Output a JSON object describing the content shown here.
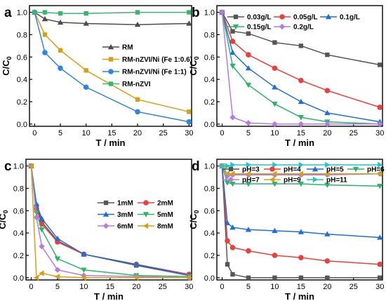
{
  "chart_data": [
    {
      "panel": "a",
      "type": "line",
      "xlabel": "T / min",
      "ylabel": "C/C",
      "ylabel_sub": "0",
      "xlim": [
        -1,
        30.5
      ],
      "ylim": [
        -0.02,
        1.06
      ],
      "xticks": [
        0,
        5,
        10,
        15,
        20,
        25,
        30
      ],
      "yticks": [
        0.0,
        0.2,
        0.4,
        0.6,
        0.8,
        1.0
      ],
      "legend_position": "right",
      "series": [
        {
          "name": "RM",
          "color": "#4d4d4d",
          "marker": "triangle-up",
          "x": [
            0,
            2,
            5,
            10,
            20,
            30
          ],
          "y": [
            1.0,
            0.94,
            0.91,
            0.9,
            0.89,
            0.9
          ]
        },
        {
          "name": "RM-nZVI/Ni (Fe 1:0.6)",
          "color": "#d4a017",
          "marker": "square",
          "x": [
            0,
            2,
            5,
            10,
            20,
            30
          ],
          "y": [
            1.0,
            0.8,
            0.66,
            0.48,
            0.22,
            0.11
          ]
        },
        {
          "name": "RM-nZVI/Ni (Fe 1:1)",
          "color": "#2e86de",
          "marker": "circle",
          "x": [
            0,
            2,
            5,
            10,
            20,
            30
          ],
          "y": [
            1.0,
            0.64,
            0.5,
            0.33,
            0.11,
            0.02
          ]
        },
        {
          "name": "RM-nZVI",
          "color": "#3cb371",
          "marker": "square",
          "x": [
            0,
            2,
            5,
            10,
            20,
            30
          ],
          "y": [
            1.0,
            1.0,
            0.99,
            0.99,
            1.0,
            1.0
          ]
        }
      ]
    },
    {
      "panel": "b",
      "type": "line",
      "xlabel": "T / min",
      "ylabel": "C/C",
      "ylabel_sub": "0",
      "xlim": [
        -1,
        30.5
      ],
      "ylim": [
        -0.02,
        1.06
      ],
      "xticks": [
        0,
        5,
        10,
        15,
        20,
        25,
        30
      ],
      "yticks": [
        0.0,
        0.2,
        0.4,
        0.6,
        0.8,
        1.0
      ],
      "legend_position": "top",
      "series": [
        {
          "name": "0.03g/L",
          "color": "#555555",
          "marker": "square",
          "x": [
            0,
            2,
            5,
            10,
            15,
            20,
            30
          ],
          "y": [
            1.0,
            0.83,
            0.81,
            0.73,
            0.7,
            0.62,
            0.53
          ]
        },
        {
          "name": "0.05g/L",
          "color": "#e8413c",
          "marker": "circle",
          "x": [
            0,
            2,
            5,
            10,
            15,
            20,
            30
          ],
          "y": [
            1.0,
            0.74,
            0.62,
            0.5,
            0.39,
            0.3,
            0.15
          ]
        },
        {
          "name": "0.1g/L",
          "color": "#1f6fd9",
          "marker": "triangle-up",
          "x": [
            0,
            2,
            5,
            10,
            15,
            20,
            30
          ],
          "y": [
            1.0,
            0.64,
            0.5,
            0.33,
            0.2,
            0.1,
            0.02
          ]
        },
        {
          "name": "0.15g/L",
          "color": "#2db36a",
          "marker": "triangle-down",
          "x": [
            0,
            2,
            5,
            10,
            15,
            20,
            30
          ],
          "y": [
            1.0,
            0.52,
            0.35,
            0.18,
            0.06,
            0.02,
            0.0
          ]
        },
        {
          "name": "0.2g/L",
          "color": "#b57be0",
          "marker": "diamond",
          "x": [
            0,
            2,
            5,
            10,
            15,
            20,
            30
          ],
          "y": [
            1.0,
            0.06,
            0.01,
            0.0,
            0.0,
            0.0,
            0.0
          ]
        }
      ]
    },
    {
      "panel": "c",
      "type": "line",
      "xlabel": "T / min",
      "ylabel": "C/C",
      "ylabel_sub": "0",
      "xlim": [
        -1,
        30.5
      ],
      "ylim": [
        -0.02,
        1.06
      ],
      "xticks": [
        0,
        5,
        10,
        15,
        20,
        25,
        30
      ],
      "yticks": [
        0.0,
        0.2,
        0.4,
        0.6,
        0.8,
        1.0
      ],
      "legend_position": "right",
      "series": [
        {
          "name": "1mM",
          "color": "#555555",
          "marker": "square",
          "x": [
            0,
            1,
            2,
            5,
            10,
            20,
            30
          ],
          "y": [
            1.0,
            0.64,
            0.5,
            0.33,
            0.21,
            0.11,
            0.02
          ]
        },
        {
          "name": "2mM",
          "color": "#e8413c",
          "marker": "circle",
          "x": [
            0,
            1,
            2,
            5,
            10,
            20,
            30
          ],
          "y": [
            1.0,
            0.62,
            0.48,
            0.32,
            0.21,
            0.12,
            0.03
          ]
        },
        {
          "name": "3mM",
          "color": "#1f6fd9",
          "marker": "triangle-up",
          "x": [
            0,
            1,
            2,
            5,
            10,
            20,
            30
          ],
          "y": [
            1.0,
            0.66,
            0.53,
            0.35,
            0.21,
            0.12,
            0.02
          ]
        },
        {
          "name": "5mM",
          "color": "#2db36a",
          "marker": "triangle-down",
          "x": [
            0,
            1,
            2,
            5,
            10,
            20,
            30
          ],
          "y": [
            1.0,
            0.58,
            0.43,
            0.17,
            0.07,
            0.02,
            0.01
          ]
        },
        {
          "name": "6mM",
          "color": "#b57be0",
          "marker": "diamond",
          "x": [
            0,
            1,
            2,
            5,
            10,
            20,
            30
          ],
          "y": [
            1.0,
            0.54,
            0.28,
            0.07,
            0.02,
            0.01,
            0.0
          ]
        },
        {
          "name": "8mM",
          "color": "#d4a017",
          "marker": "triangle-left",
          "x": [
            0,
            1,
            2,
            5,
            10,
            20,
            30
          ],
          "y": [
            1.0,
            0.0,
            0.04,
            0.01,
            0.0,
            0.0,
            0.0
          ]
        }
      ]
    },
    {
      "panel": "d",
      "type": "line",
      "xlabel": "T / min",
      "ylabel": "C/C",
      "ylabel_sub": "0",
      "xlim": [
        -1,
        30.5
      ],
      "ylim": [
        -0.02,
        1.06
      ],
      "xticks": [
        0,
        5,
        10,
        15,
        20,
        25,
        30
      ],
      "yticks": [
        0.0,
        0.2,
        0.4,
        0.6,
        0.8,
        1.0
      ],
      "legend_position": "top",
      "series": [
        {
          "name": "pH=3",
          "color": "#555555",
          "marker": "square",
          "x": [
            0,
            1,
            2,
            5,
            10,
            15,
            20,
            30
          ],
          "y": [
            1.0,
            0.12,
            0.03,
            0.0,
            0.0,
            0.0,
            0.0,
            0.0
          ]
        },
        {
          "name": "pH=4",
          "color": "#e8413c",
          "marker": "circle",
          "x": [
            0,
            1,
            2,
            5,
            10,
            15,
            20,
            30
          ],
          "y": [
            1.0,
            0.33,
            0.27,
            0.24,
            0.2,
            0.18,
            0.15,
            0.12
          ]
        },
        {
          "name": "pH=5",
          "color": "#1f6fd9",
          "marker": "triangle-up",
          "x": [
            0,
            1,
            2,
            5,
            10,
            15,
            20,
            30
          ],
          "y": [
            1.0,
            0.49,
            0.45,
            0.43,
            0.42,
            0.41,
            0.39,
            0.36
          ]
        },
        {
          "name": "pH=6",
          "color": "#2db36a",
          "marker": "triangle-down",
          "x": [
            0,
            1,
            2,
            5,
            10,
            15,
            20,
            30
          ],
          "y": [
            1.0,
            0.85,
            0.84,
            0.84,
            0.84,
            0.84,
            0.83,
            0.82
          ]
        },
        {
          "name": "pH=7",
          "color": "#b57be0",
          "marker": "diamond",
          "x": [
            0,
            1,
            2,
            5,
            10,
            15,
            20,
            30
          ],
          "y": [
            1.0,
            0.91,
            0.92,
            0.92,
            0.92,
            0.92,
            0.92,
            0.93
          ]
        },
        {
          "name": "pH=9",
          "color": "#d4a017",
          "marker": "triangle-left",
          "x": [
            0,
            1,
            2,
            5,
            10,
            15,
            20,
            30
          ],
          "y": [
            1.0,
            0.93,
            0.93,
            0.93,
            0.93,
            0.93,
            0.93,
            0.93
          ]
        },
        {
          "name": "pH=11",
          "color": "#1fc7c7",
          "marker": "triangle-right",
          "x": [
            0,
            1,
            2,
            5,
            10,
            15,
            20,
            30
          ],
          "y": [
            1.0,
            1.0,
            1.01,
            1.01,
            1.01,
            1.01,
            1.01,
            1.01
          ]
        }
      ]
    }
  ]
}
